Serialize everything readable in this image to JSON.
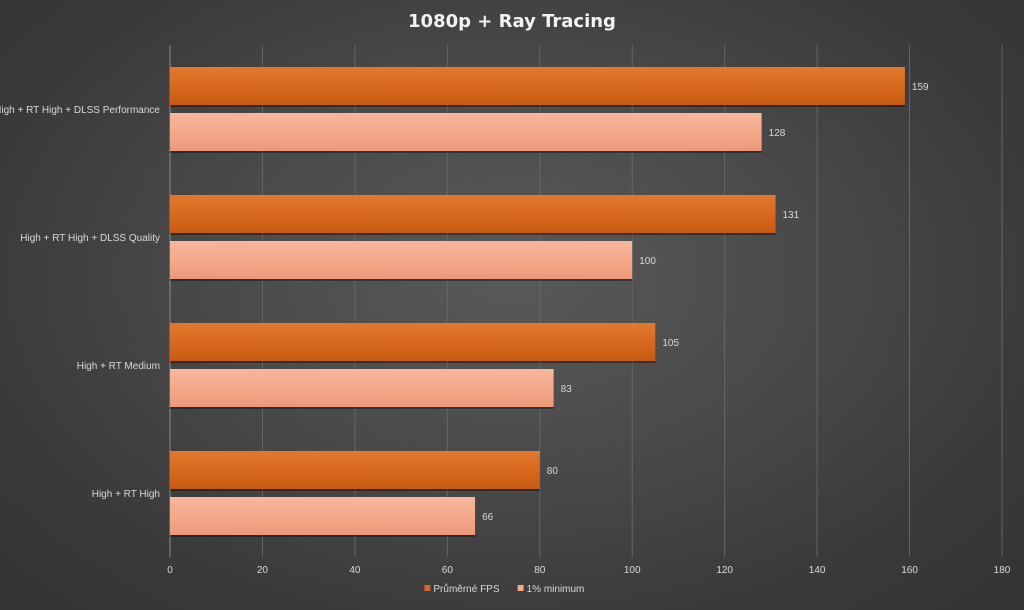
{
  "chart_data": {
    "type": "bar",
    "orientation": "horizontal",
    "title": "1080p + Ray Tracing",
    "xlabel": "",
    "ylabel": "",
    "categories": [
      "High + RT High + DLSS Performance",
      "High + RT High + DLSS Quality",
      "High + RT Medium",
      "High + RT High"
    ],
    "series": [
      {
        "name": "Průměrné FPS",
        "values": [
          159,
          131,
          105,
          80
        ],
        "color": "#d9691f"
      },
      {
        "name": "1% minimum",
        "values": [
          128,
          100,
          83,
          66
        ],
        "color": "#f4a98a"
      }
    ],
    "xlim": [
      0,
      180
    ],
    "xticks": [
      0,
      20,
      40,
      60,
      80,
      100,
      120,
      140,
      160,
      180
    ],
    "grid": "vertical",
    "legend": "bottom",
    "data_labels": true
  }
}
